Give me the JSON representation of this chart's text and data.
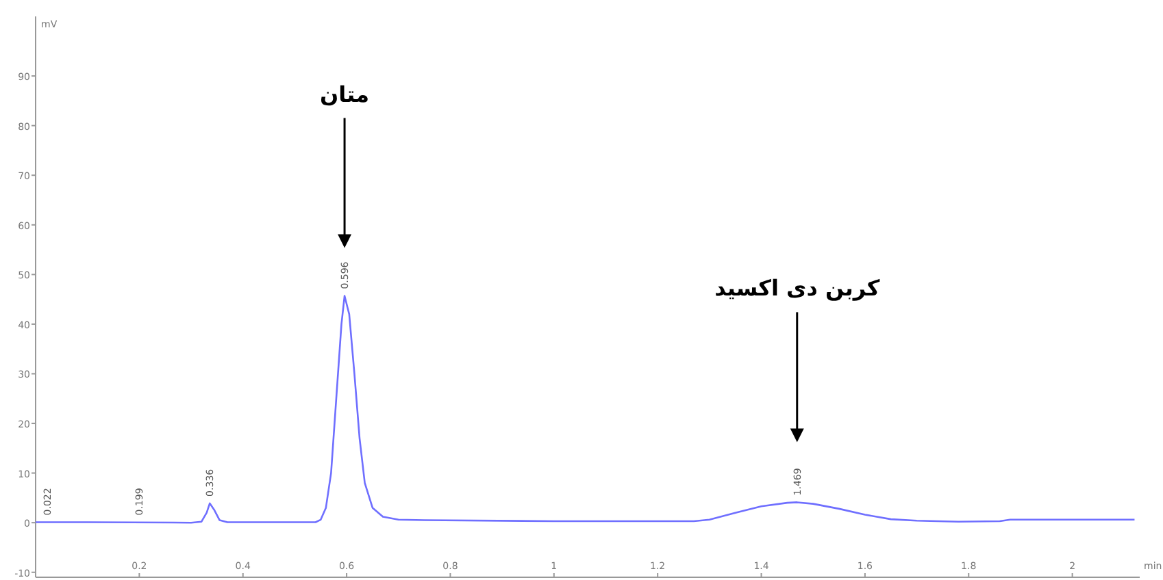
{
  "chart_data": {
    "type": "line",
    "xlabel": "min",
    "ylabel": "mV",
    "x": [
      0,
      0.1,
      0.3,
      0.32,
      0.33,
      0.336,
      0.345,
      0.355,
      0.37,
      0.54,
      0.55,
      0.56,
      0.57,
      0.58,
      0.59,
      0.596,
      0.605,
      0.615,
      0.625,
      0.635,
      0.65,
      0.67,
      0.7,
      0.75,
      1.0,
      1.27,
      1.3,
      1.35,
      1.4,
      1.45,
      1.469,
      1.5,
      1.55,
      1.6,
      1.65,
      1.7,
      1.78,
      1.86,
      1.88,
      2.12
    ],
    "series": [
      {
        "color": "#6f6fff",
        "values": [
          0.1,
          0.1,
          0,
          0.2,
          2,
          3.9,
          2.5,
          0.5,
          0.1,
          0.1,
          0.6,
          3,
          10,
          25,
          40,
          45.7,
          42,
          30,
          17,
          8,
          3,
          1.2,
          0.6,
          0.5,
          0.3,
          0.3,
          0.6,
          2,
          3.3,
          4,
          4.1,
          3.8,
          2.8,
          1.6,
          0.7,
          0.4,
          0.2,
          0.3,
          0.6,
          0.6
        ]
      }
    ],
    "xlim": [
      0,
      2.13
    ],
    "ylim": [
      -11,
      102
    ],
    "xticks": [
      0.2,
      0.4,
      0.6,
      0.8,
      1,
      1.2,
      1.4,
      1.6,
      1.8,
      2
    ],
    "yticks": [
      -10,
      0,
      10,
      20,
      30,
      40,
      50,
      60,
      70,
      80,
      90
    ],
    "grid": false,
    "annotations": [
      {
        "text": "0.022",
        "x": 0.022,
        "y": 0.1
      },
      {
        "text": "0.199",
        "x": 0.199,
        "y": 0.1
      },
      {
        "text": "0.336",
        "x": 0.336,
        "y": 3.9
      },
      {
        "text": "0.596",
        "x": 0.596,
        "y": 45.7
      },
      {
        "text": "1.469",
        "x": 1.469,
        "y": 4.1
      },
      "متان",
      "کربن دی اکسید"
    ]
  }
}
